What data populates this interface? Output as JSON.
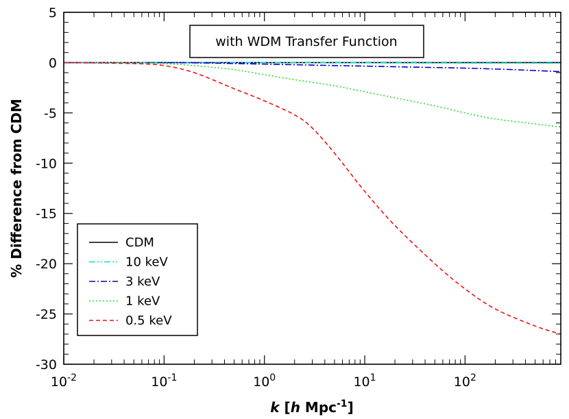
{
  "chart_data": {
    "type": "line",
    "title": "",
    "annotation": "with WDM Transfer Function",
    "xlabel": {
      "italic_prefix": "k",
      "bracket_open": " [",
      "h": "h",
      "unit": " Mpc",
      "exp": "-1",
      "bracket_close": "]"
    },
    "ylabel": "% Difference from CDM",
    "xscale": "log",
    "xlim": [
      0.01,
      900
    ],
    "ylim": [
      -30,
      5
    ],
    "x_ticks": [
      {
        "value": 0.01,
        "base": "10",
        "exp": "-2"
      },
      {
        "value": 0.1,
        "base": "10",
        "exp": "-1"
      },
      {
        "value": 1,
        "base": "10",
        "exp": "0"
      },
      {
        "value": 10,
        "base": "10",
        "exp": "1"
      },
      {
        "value": 100,
        "base": "10",
        "exp": "2"
      }
    ],
    "y_ticks": [
      {
        "value": 5,
        "label": "5"
      },
      {
        "value": 0,
        "label": "0"
      },
      {
        "value": -5,
        "label": "-5"
      },
      {
        "value": -10,
        "label": "-10"
      },
      {
        "value": -15,
        "label": "-15"
      },
      {
        "value": -20,
        "label": "-20"
      },
      {
        "value": -25,
        "label": "-25"
      },
      {
        "value": -30,
        "label": "-30"
      }
    ],
    "legend_position": "bottom-left",
    "series": [
      {
        "name": "CDM",
        "color": "#000000",
        "dash": "solid",
        "x": [
          0.01,
          900
        ],
        "y": [
          0,
          0
        ]
      },
      {
        "name": "10 keV",
        "color": "#00dddd",
        "dash": "dashdotdot",
        "x": [
          0.01,
          0.1,
          1,
          10,
          100,
          900
        ],
        "y": [
          0,
          0,
          0,
          -0.02,
          -0.04,
          -0.05
        ]
      },
      {
        "name": "3 keV",
        "color": "#0000cc",
        "dash": "dashdot",
        "x": [
          0.01,
          0.1,
          0.3,
          1,
          3,
          10,
          30,
          100,
          300,
          900
        ],
        "y": [
          0,
          0,
          -0.05,
          -0.15,
          -0.25,
          -0.35,
          -0.45,
          -0.55,
          -0.7,
          -0.9
        ]
      },
      {
        "name": "1 keV",
        "color": "#22dd22",
        "dash": "dotted",
        "x": [
          0.01,
          0.05,
          0.1,
          0.2,
          0.5,
          1,
          2,
          5,
          10,
          20,
          50,
          100,
          200,
          500,
          900
        ],
        "y": [
          0,
          0,
          -0.1,
          -0.3,
          -0.7,
          -1.2,
          -1.7,
          -2.3,
          -2.9,
          -3.5,
          -4.3,
          -5.0,
          -5.6,
          -6.1,
          -6.4
        ]
      },
      {
        "name": "0.5 keV",
        "color": "#ee1111",
        "dash": "dashed",
        "x": [
          0.01,
          0.05,
          0.1,
          0.2,
          0.5,
          1,
          2,
          3,
          5,
          10,
          20,
          50,
          100,
          200,
          500,
          900
        ],
        "y": [
          0,
          -0.1,
          -0.3,
          -1.0,
          -2.6,
          -3.8,
          -5.2,
          -6.5,
          -9.0,
          -12.8,
          -16.2,
          -20.0,
          -22.5,
          -24.5,
          -26.2,
          -27.0
        ]
      }
    ]
  }
}
